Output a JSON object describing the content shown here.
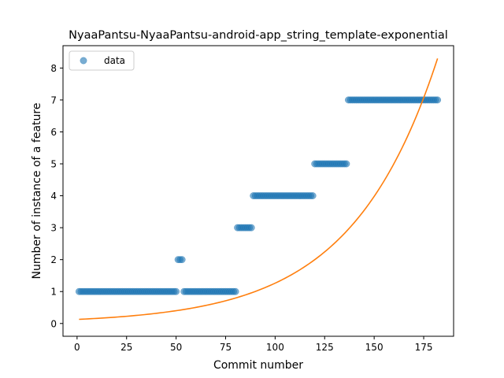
{
  "chart_data": {
    "type": "scatter",
    "title": "NyaaPantsu-NyaaPantsu-android-app_string_template-exponential",
    "xlabel": "Commit number",
    "ylabel": "Number of instance of a feature",
    "xlim": [
      -7.1,
      190.1
    ],
    "ylim": [
      -0.4,
      8.7
    ],
    "xticks": [
      0,
      25,
      50,
      75,
      100,
      125,
      150,
      175
    ],
    "yticks": [
      0,
      1,
      2,
      3,
      4,
      5,
      6,
      7,
      8
    ],
    "grid": false,
    "legend": {
      "position": "top-left",
      "entries": [
        "data"
      ]
    },
    "series": [
      {
        "name": "data",
        "kind": "scatter",
        "color": "#1f77b4",
        "segments": [
          {
            "x_start": 1,
            "x_end": 50,
            "y": 1
          },
          {
            "x_start": 51,
            "x_end": 53,
            "y": 2
          },
          {
            "x_start": 54,
            "x_end": 80,
            "y": 1
          },
          {
            "x_start": 81,
            "x_end": 88,
            "y": 3
          },
          {
            "x_start": 89,
            "x_end": 119,
            "y": 4
          },
          {
            "x_start": 120,
            "x_end": 136,
            "y": 5
          },
          {
            "x_start": 137,
            "x_end": 182,
            "y": 7
          }
        ]
      },
      {
        "kind": "line",
        "color": "#ff7f0e",
        "x_start": 1,
        "x_end": 182,
        "y_at_start": 0.13,
        "y_at_end": 8.3
      }
    ]
  }
}
